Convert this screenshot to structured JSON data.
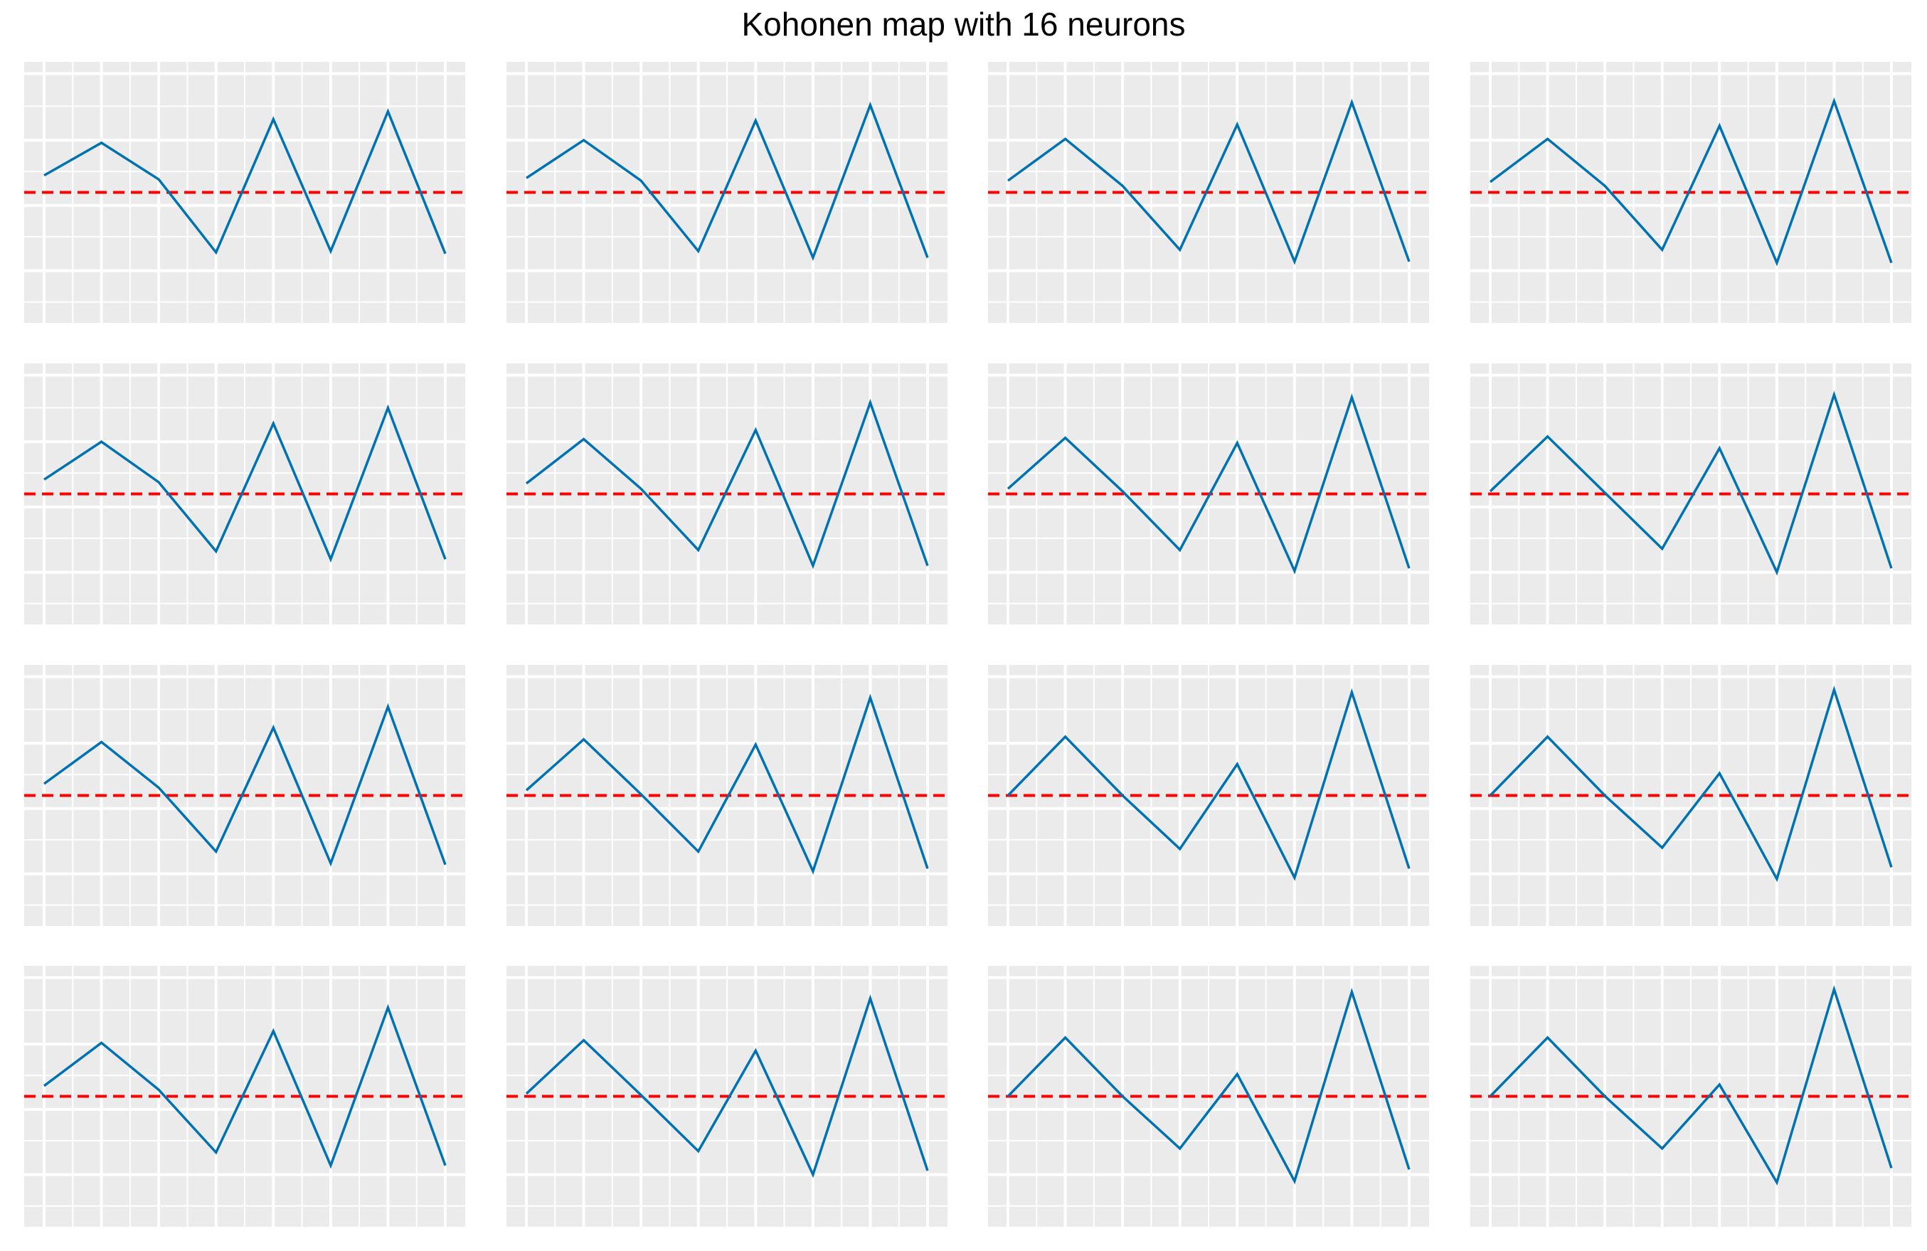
{
  "chart_data": {
    "type": "line",
    "title": "Kohonen map with 16 neurons",
    "grid": true,
    "xlabel": "",
    "ylabel": "",
    "x": [
      1,
      2,
      3,
      4,
      5,
      6,
      7,
      8
    ],
    "reference_line": {
      "y": 0,
      "style": "dashed",
      "color": "#FF0000"
    },
    "ylim": [
      -1.0,
      1.0
    ],
    "colors": {
      "line": "#0072B2",
      "reference": "#FF0000",
      "panel_bg": "#EBEBEB",
      "grid": "#FFFFFF"
    },
    "panels": [
      {
        "neuron": 1,
        "values": [
          0.13,
          0.38,
          0.1,
          -0.46,
          0.56,
          -0.45,
          0.62,
          -0.47
        ]
      },
      {
        "neuron": 2,
        "values": [
          0.11,
          0.4,
          0.09,
          -0.45,
          0.55,
          -0.5,
          0.67,
          -0.5
        ]
      },
      {
        "neuron": 3,
        "values": [
          0.09,
          0.41,
          0.05,
          -0.44,
          0.52,
          -0.53,
          0.69,
          -0.53
        ]
      },
      {
        "neuron": 4,
        "values": [
          0.08,
          0.41,
          0.05,
          -0.44,
          0.51,
          -0.54,
          0.7,
          -0.54
        ]
      },
      {
        "neuron": 5,
        "values": [
          0.11,
          0.4,
          0.09,
          -0.44,
          0.54,
          -0.5,
          0.66,
          -0.5
        ]
      },
      {
        "neuron": 6,
        "values": [
          0.08,
          0.42,
          0.04,
          -0.43,
          0.49,
          -0.55,
          0.7,
          -0.55
        ]
      },
      {
        "neuron": 7,
        "values": [
          0.04,
          0.43,
          0.02,
          -0.43,
          0.39,
          -0.59,
          0.74,
          -0.57
        ]
      },
      {
        "neuron": 8,
        "values": [
          0.02,
          0.44,
          0.01,
          -0.42,
          0.35,
          -0.6,
          0.76,
          -0.57
        ]
      },
      {
        "neuron": 9,
        "values": [
          0.09,
          0.41,
          0.06,
          -0.43,
          0.52,
          -0.52,
          0.68,
          -0.53
        ]
      },
      {
        "neuron": 10,
        "values": [
          0.04,
          0.43,
          0.01,
          -0.43,
          0.39,
          -0.58,
          0.75,
          -0.56
        ]
      },
      {
        "neuron": 11,
        "values": [
          0.0,
          0.45,
          0.0,
          -0.41,
          0.24,
          -0.63,
          0.79,
          -0.56
        ]
      },
      {
        "neuron": 12,
        "values": [
          0.0,
          0.45,
          0.0,
          -0.4,
          0.17,
          -0.64,
          0.81,
          -0.55
        ]
      },
      {
        "neuron": 13,
        "values": [
          0.08,
          0.41,
          0.05,
          -0.43,
          0.5,
          -0.53,
          0.68,
          -0.53
        ]
      },
      {
        "neuron": 14,
        "values": [
          0.02,
          0.43,
          0.01,
          -0.42,
          0.35,
          -0.6,
          0.75,
          -0.57
        ]
      },
      {
        "neuron": 15,
        "values": [
          0.0,
          0.45,
          0.0,
          -0.4,
          0.17,
          -0.65,
          0.8,
          -0.56
        ]
      },
      {
        "neuron": 16,
        "values": [
          0.0,
          0.45,
          0.0,
          -0.4,
          0.09,
          -0.66,
          0.82,
          -0.55
        ]
      }
    ]
  }
}
